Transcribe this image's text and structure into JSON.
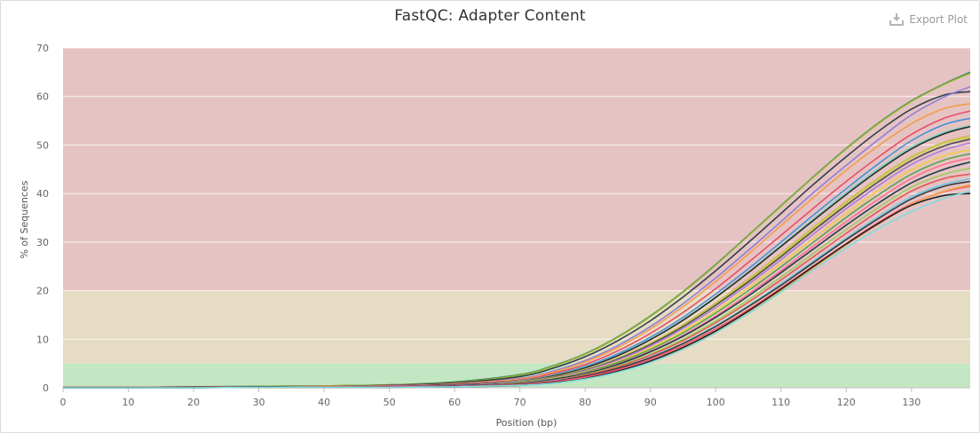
{
  "header": {
    "title": "FastQC: Adapter Content",
    "export_label": "Export Plot"
  },
  "chart_data": {
    "type": "line",
    "title": "FastQC: Adapter Content",
    "xlabel": "Position (bp)",
    "ylabel": "% of Sequences",
    "xlim": [
      0,
      139
    ],
    "ylim": [
      0,
      70
    ],
    "xticks": [
      0,
      10,
      20,
      30,
      40,
      50,
      60,
      70,
      80,
      90,
      100,
      110,
      120,
      130
    ],
    "yticks": [
      0,
      10,
      20,
      30,
      40,
      50,
      60,
      70
    ],
    "grid": true,
    "legend": "none",
    "bands": [
      {
        "from": 0,
        "to": 5,
        "color": "#c3e6c3"
      },
      {
        "from": 5,
        "to": 20,
        "color": "#e6dcc3"
      },
      {
        "from": 20,
        "to": 70,
        "color": "#e6c3c3"
      }
    ],
    "x": [
      0,
      10,
      20,
      30,
      40,
      50,
      60,
      70,
      75,
      80,
      85,
      90,
      95,
      100,
      105,
      110,
      115,
      120,
      125,
      130,
      135,
      139
    ],
    "series": [
      {
        "color": "#2f7f6f",
        "values": [
          0.1,
          0.1,
          0.2,
          0.3,
          0.4,
          0.6,
          1.2,
          2.7,
          4.5,
          7.0,
          10.5,
          14.8,
          19.8,
          25.4,
          31.4,
          37.5,
          43.5,
          49.3,
          54.6,
          59.1,
          62.6,
          65.0
        ]
      },
      {
        "color": "#8fb32f",
        "values": [
          0.1,
          0.1,
          0.2,
          0.3,
          0.4,
          0.6,
          1.1,
          2.6,
          4.4,
          6.9,
          10.4,
          14.7,
          19.7,
          25.3,
          31.3,
          37.4,
          43.4,
          49.2,
          54.5,
          59.0,
          62.5,
          64.8
        ]
      },
      {
        "color": "#333e48",
        "values": [
          0.1,
          0.1,
          0.2,
          0.2,
          0.3,
          0.5,
          1.0,
          2.3,
          4.0,
          6.4,
          9.7,
          13.8,
          18.7,
          24.1,
          29.9,
          35.9,
          41.9,
          47.6,
          52.9,
          57.4,
          60.3,
          61.0
        ]
      },
      {
        "color": "#8c7fd6",
        "values": [
          0.1,
          0.1,
          0.1,
          0.2,
          0.3,
          0.4,
          0.8,
          1.9,
          3.4,
          5.6,
          8.7,
          12.6,
          17.3,
          22.6,
          28.3,
          34.2,
          40.2,
          45.8,
          51.2,
          56.2,
          59.9,
          62.0
        ]
      },
      {
        "color": "#f39c4a",
        "values": [
          0.1,
          0.1,
          0.1,
          0.2,
          0.3,
          0.4,
          0.8,
          1.8,
          3.2,
          5.3,
          8.3,
          12.1,
          16.7,
          21.9,
          27.5,
          33.4,
          39.2,
          44.8,
          49.9,
          54.4,
          57.5,
          58.5
        ]
      },
      {
        "color": "#e84d6b",
        "values": [
          0.1,
          0.1,
          0.1,
          0.2,
          0.2,
          0.4,
          0.7,
          1.6,
          2.9,
          4.8,
          7.6,
          11.2,
          15.5,
          20.4,
          25.8,
          31.4,
          37.0,
          42.5,
          47.6,
          52.2,
          55.5,
          57.0
        ]
      },
      {
        "color": "#4a90d9",
        "values": [
          0.1,
          0.1,
          0.1,
          0.2,
          0.2,
          0.3,
          0.6,
          1.4,
          2.6,
          4.4,
          7.0,
          10.4,
          14.5,
          19.3,
          24.5,
          30.0,
          35.6,
          41.0,
          46.2,
          50.9,
          54.2,
          55.5
        ]
      },
      {
        "color": "#7dd3c0",
        "values": [
          0.1,
          0.1,
          0.1,
          0.2,
          0.2,
          0.3,
          0.6,
          1.4,
          2.5,
          4.2,
          6.7,
          10.0,
          14.0,
          18.7,
          23.8,
          29.3,
          34.8,
          40.2,
          45.2,
          49.6,
          52.6,
          54.0
        ]
      },
      {
        "color": "#2b2b2b",
        "values": [
          0.1,
          0.1,
          0.1,
          0.2,
          0.2,
          0.3,
          0.6,
          1.3,
          2.4,
          4.1,
          6.6,
          9.9,
          13.9,
          18.6,
          23.7,
          29.1,
          34.5,
          39.8,
          44.8,
          49.2,
          52.3,
          53.8
        ]
      },
      {
        "color": "#d9b36c",
        "values": [
          0.1,
          0.1,
          0.1,
          0.1,
          0.2,
          0.3,
          0.5,
          1.2,
          2.2,
          3.8,
          6.1,
          9.2,
          13.0,
          17.5,
          22.4,
          27.7,
          33.1,
          38.4,
          43.3,
          47.6,
          50.6,
          52.0
        ]
      },
      {
        "color": "#c2d23a",
        "values": [
          0.1,
          0.1,
          0.1,
          0.1,
          0.2,
          0.3,
          0.5,
          1.2,
          2.2,
          3.7,
          6.0,
          9.0,
          12.8,
          17.2,
          22.1,
          27.4,
          32.8,
          38.1,
          43.0,
          47.4,
          50.4,
          51.6
        ]
      },
      {
        "color": "#4e4e4e",
        "values": [
          0.1,
          0.1,
          0.1,
          0.1,
          0.2,
          0.3,
          0.5,
          1.1,
          2.1,
          3.6,
          5.9,
          8.9,
          12.6,
          17.0,
          21.8,
          27.0,
          32.4,
          37.6,
          42.5,
          46.8,
          49.8,
          51.2
        ]
      },
      {
        "color": "#b07ad9",
        "values": [
          0.1,
          0.1,
          0.1,
          0.1,
          0.2,
          0.3,
          0.5,
          1.1,
          2.0,
          3.5,
          5.7,
          8.6,
          12.2,
          16.5,
          21.3,
          26.4,
          31.7,
          36.9,
          41.7,
          46.0,
          49.0,
          50.4
        ]
      },
      {
        "color": "#f2cc40",
        "values": [
          0.1,
          0.1,
          0.1,
          0.1,
          0.2,
          0.2,
          0.4,
          1.0,
          1.9,
          3.3,
          5.4,
          8.2,
          11.7,
          15.9,
          20.6,
          25.6,
          30.8,
          35.9,
          40.7,
          44.9,
          47.8,
          49.0
        ]
      },
      {
        "color": "#59a14f",
        "values": [
          0.1,
          0.1,
          0.1,
          0.1,
          0.2,
          0.2,
          0.4,
          1.0,
          1.8,
          3.2,
          5.2,
          7.9,
          11.3,
          15.4,
          20.0,
          24.9,
          30.0,
          35.1,
          39.8,
          44.0,
          46.9,
          48.2
        ]
      },
      {
        "color": "#ff6f91",
        "values": [
          0.1,
          0.1,
          0.1,
          0.1,
          0.2,
          0.2,
          0.4,
          0.9,
          1.7,
          3.0,
          4.9,
          7.5,
          10.8,
          14.8,
          19.3,
          24.1,
          29.2,
          34.2,
          38.9,
          43.1,
          46.0,
          47.3
        ]
      },
      {
        "color": "#1f3b4d",
        "values": [
          0.1,
          0.1,
          0.1,
          0.1,
          0.1,
          0.2,
          0.4,
          0.9,
          1.7,
          2.9,
          4.8,
          7.4,
          10.6,
          14.5,
          18.9,
          23.7,
          28.6,
          33.5,
          38.1,
          42.2,
          45.0,
          46.5
        ]
      },
      {
        "color": "#9acd5a",
        "values": [
          0.1,
          0.1,
          0.1,
          0.1,
          0.1,
          0.2,
          0.3,
          0.8,
          1.5,
          2.7,
          4.5,
          6.9,
          10.0,
          13.8,
          18.1,
          22.8,
          27.7,
          32.6,
          37.2,
          41.3,
          44.0,
          45.2
        ]
      },
      {
        "color": "#e05a5a",
        "values": [
          0.1,
          0.1,
          0.1,
          0.1,
          0.1,
          0.2,
          0.3,
          0.8,
          1.5,
          2.6,
          4.3,
          6.7,
          9.7,
          13.4,
          17.6,
          22.2,
          27.0,
          31.8,
          36.4,
          40.5,
          43.1,
          44.0
        ]
      },
      {
        "color": "#6ec6e6",
        "values": [
          0.0,
          0.0,
          0.1,
          0.1,
          0.1,
          0.2,
          0.3,
          0.7,
          1.4,
          2.4,
          4.0,
          6.3,
          9.2,
          12.8,
          16.9,
          21.4,
          26.1,
          30.8,
          35.3,
          39.3,
          41.9,
          43.0
        ]
      },
      {
        "color": "#3a3a3a",
        "values": [
          0.0,
          0.0,
          0.1,
          0.1,
          0.1,
          0.2,
          0.3,
          0.7,
          1.3,
          2.4,
          4.0,
          6.2,
          9.1,
          12.6,
          16.7,
          21.1,
          25.8,
          30.5,
          34.9,
          38.9,
          41.5,
          42.5
        ]
      },
      {
        "color": "#ff4d6d",
        "values": [
          0.0,
          0.0,
          0.1,
          0.1,
          0.1,
          0.2,
          0.3,
          0.6,
          1.2,
          2.2,
          3.7,
          5.9,
          8.7,
          12.1,
          16.1,
          20.5,
          25.1,
          29.7,
          34.1,
          37.9,
          40.4,
          41.5
        ]
      },
      {
        "color": "#f0a64a",
        "values": [
          0.0,
          0.0,
          0.0,
          0.1,
          0.1,
          0.1,
          0.2,
          0.5,
          1.0,
          1.9,
          3.3,
          5.4,
          8.2,
          11.6,
          15.6,
          20.0,
          24.7,
          29.4,
          33.8,
          37.8,
          40.5,
          41.8
        ]
      },
      {
        "color": "#222222",
        "values": [
          0.0,
          0.0,
          0.0,
          0.1,
          0.1,
          0.1,
          0.2,
          0.5,
          1.0,
          1.9,
          3.4,
          5.5,
          8.3,
          11.7,
          15.8,
          20.3,
          25.0,
          29.6,
          33.9,
          37.6,
          39.6,
          40.0
        ]
      },
      {
        "color": "#7fdbe0",
        "values": [
          0.0,
          0.0,
          0.0,
          0.1,
          0.1,
          0.1,
          0.2,
          0.5,
          0.9,
          1.8,
          3.2,
          5.2,
          7.9,
          11.3,
          15.3,
          19.7,
          24.3,
          28.8,
          32.8,
          36.3,
          39.0,
          40.5
        ]
      }
    ]
  }
}
